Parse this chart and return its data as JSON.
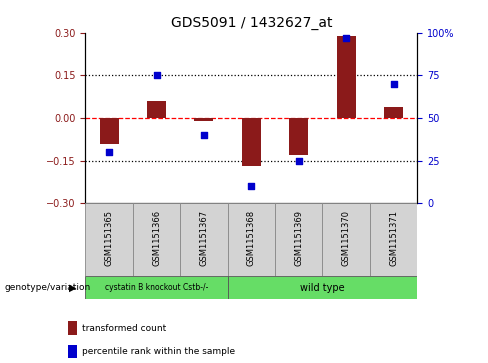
{
  "title": "GDS5091 / 1432627_at",
  "samples": [
    "GSM1151365",
    "GSM1151366",
    "GSM1151367",
    "GSM1151368",
    "GSM1151369",
    "GSM1151370",
    "GSM1151371"
  ],
  "transformed_count": [
    -0.09,
    0.06,
    -0.01,
    -0.17,
    -0.13,
    0.29,
    0.04
  ],
  "percentile_rank": [
    30,
    75,
    40,
    10,
    25,
    97,
    70
  ],
  "ylim_left": [
    -0.3,
    0.3
  ],
  "ylim_right": [
    0,
    100
  ],
  "yticks_left": [
    -0.3,
    -0.15,
    0,
    0.15,
    0.3
  ],
  "yticks_right": [
    0,
    25,
    50,
    75,
    100
  ],
  "bar_color": "#8B1A1A",
  "dot_color": "#0000CC",
  "background_color": "#ffffff",
  "group1_label": "cystatin B knockout Cstb-/-",
  "group2_label": "wild type",
  "group1_color": "#66DD66",
  "group2_color": "#66DD66",
  "group1_indices": [
    0,
    1,
    2
  ],
  "group2_indices": [
    3,
    4,
    5,
    6
  ],
  "legend_tc": "transformed count",
  "legend_pr": "percentile rank within the sample",
  "genotype_label": "genotype/variation",
  "dotted_line_color": "#000000",
  "zero_line_color": "#FF0000",
  "title_fontsize": 10,
  "tick_fontsize": 7,
  "label_fontsize": 7.5,
  "bar_width": 0.4
}
